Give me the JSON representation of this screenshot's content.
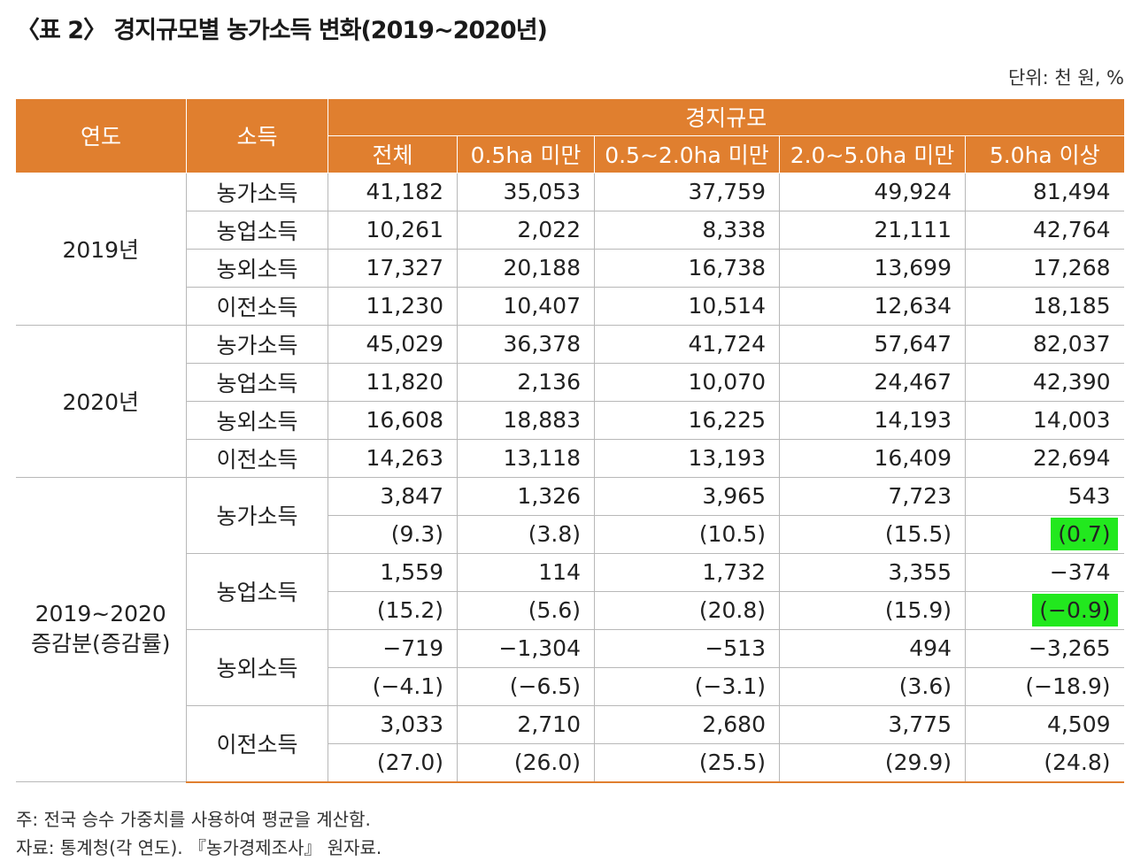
{
  "title": "〈표 2〉 경지규모별 농가소득 변화(2019~2020년)",
  "unit": "단위: 천 원, %",
  "header": {
    "year": "연도",
    "income": "소득",
    "group": "경지규모",
    "columns": [
      "전체",
      "0.5ha 미만",
      "0.5~2.0ha 미만",
      "2.0~5.0ha 미만",
      "5.0ha 이상"
    ]
  },
  "rows_2019": {
    "label": "2019년",
    "items": [
      {
        "name": "농가소득",
        "values": [
          "41,182",
          "35,053",
          "37,759",
          "49,924",
          "81,494"
        ]
      },
      {
        "name": "농업소득",
        "values": [
          "10,261",
          "2,022",
          "8,338",
          "21,111",
          "42,764"
        ]
      },
      {
        "name": "농외소득",
        "values": [
          "17,327",
          "20,188",
          "16,738",
          "13,699",
          "17,268"
        ]
      },
      {
        "name": "이전소득",
        "values": [
          "11,230",
          "10,407",
          "10,514",
          "12,634",
          "18,185"
        ]
      }
    ]
  },
  "rows_2020": {
    "label": "2020년",
    "items": [
      {
        "name": "농가소득",
        "values": [
          "45,029",
          "36,378",
          "41,724",
          "57,647",
          "82,037"
        ]
      },
      {
        "name": "농업소득",
        "values": [
          "11,820",
          "2,136",
          "10,070",
          "24,467",
          "42,390"
        ]
      },
      {
        "name": "농외소득",
        "values": [
          "16,608",
          "18,883",
          "16,225",
          "14,193",
          "14,003"
        ]
      },
      {
        "name": "이전소득",
        "values": [
          "14,263",
          "13,118",
          "13,193",
          "16,409",
          "22,694"
        ]
      }
    ]
  },
  "rows_change": {
    "label_line1": "2019~2020",
    "label_line2": "증감분(증감률)",
    "items": [
      {
        "name": "농가소득",
        "values": [
          "3,847",
          "1,326",
          "3,965",
          "7,723",
          "543"
        ],
        "rates": [
          "(9.3)",
          "(3.8)",
          "(10.5)",
          "(15.5)",
          "(0.7)"
        ]
      },
      {
        "name": "농업소득",
        "values": [
          "1,559",
          "114",
          "1,732",
          "3,355",
          "−374"
        ],
        "rates": [
          "(15.2)",
          "(5.6)",
          "(20.8)",
          "(15.9)",
          "(−0.9)"
        ]
      },
      {
        "name": "농외소득",
        "values": [
          "−719",
          "−1,304",
          "−513",
          "494",
          "−3,265"
        ],
        "rates": [
          "(−4.1)",
          "(−6.5)",
          "(−3.1)",
          "(3.6)",
          "(−18.9)"
        ]
      },
      {
        "name": "이전소득",
        "values": [
          "3,033",
          "2,710",
          "2,680",
          "3,775",
          "4,509"
        ],
        "rates": [
          "(27.0)",
          "(26.0)",
          "(25.5)",
          "(29.9)",
          "(24.8)"
        ]
      }
    ]
  },
  "highlight_color": "#22e81e",
  "header_color": "#e07f2f",
  "notes": {
    "note1": "주: 전국 승수 가중치를 사용하여 평균을 계산함.",
    "note2": "자료: 통계청(각 연도). 『농가경제조사』 원자료."
  }
}
